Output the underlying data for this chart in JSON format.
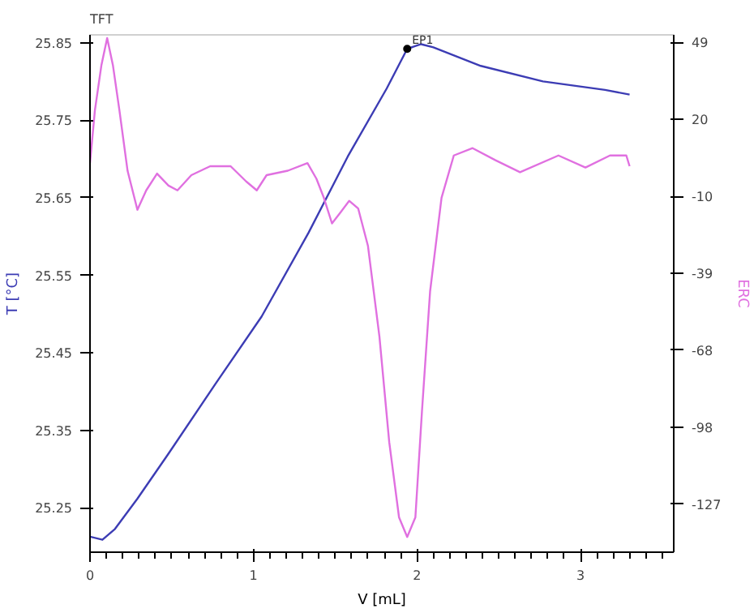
{
  "chart_data": {
    "type": "line",
    "title": "TFT",
    "xlabel": "V [mL]",
    "ylabel": "T [°C]",
    "y2label": "ERC",
    "xlim": [
      0,
      3.57
    ],
    "xticks": [
      0,
      1,
      2,
      3
    ],
    "ylim": [
      25.193,
      25.86
    ],
    "yticks": [
      25.25,
      25.35,
      25.45,
      25.55,
      25.65,
      25.75,
      25.85
    ],
    "y2lim": [
      -145.4,
      51.9
    ],
    "y2ticks": [
      {
        "value": 49,
        "label": "49"
      },
      {
        "value": 19.67,
        "label": "20"
      },
      {
        "value": -9.67,
        "label": "-10"
      },
      {
        "value": -39,
        "label": "-39"
      },
      {
        "value": -68.33,
        "label": "-68"
      },
      {
        "value": -97.67,
        "label": "-98"
      },
      {
        "value": -127,
        "label": "-127"
      }
    ],
    "grid": false,
    "marker": "none",
    "line_style": "solid",
    "annotations": [
      {
        "text": "EP1",
        "x": 1.94,
        "y": 25.842
      }
    ],
    "series": [
      {
        "color": "#3c3cb4",
        "x": [
          0,
          0.076,
          0.153,
          0.29,
          0.48,
          0.764,
          1.05,
          1.337,
          1.576,
          1.815,
          1.94,
          2.025,
          2.1,
          2.39,
          2.77,
          3.15,
          3.3
        ],
        "values": [
          25.213,
          25.209,
          25.223,
          25.262,
          25.32,
          25.409,
          25.497,
          25.605,
          25.703,
          25.791,
          25.842,
          25.848,
          25.844,
          25.82,
          25.8,
          25.789,
          25.783
        ]
      },
      {
        "color": "#e070e0",
        "axis": "y2",
        "x": [
          0,
          0.03,
          0.07,
          0.105,
          0.14,
          0.18,
          0.23,
          0.29,
          0.344,
          0.41,
          0.48,
          0.535,
          0.62,
          0.735,
          0.86,
          0.955,
          1.02,
          1.08,
          1.21,
          1.33,
          1.385,
          1.43,
          1.48,
          1.53,
          1.585,
          1.64,
          1.7,
          1.77,
          1.83,
          1.89,
          1.94,
          1.99,
          2.03,
          2.08,
          2.15,
          2.225,
          2.34,
          2.48,
          2.63,
          2.865,
          3.03,
          3.18,
          3.28,
          3.3
        ],
        "values": [
          3.0,
          23.1,
          40.4,
          50.7,
          40.4,
          23.1,
          0,
          -14.8,
          -7.4,
          -1.0,
          -5.6,
          -7.4,
          -1.6,
          1.8,
          1.8,
          -4,
          -7.4,
          -1.6,
          0.1,
          3.0,
          -3,
          -10.2,
          -20.0,
          -16.0,
          -11.4,
          -14.3,
          -28.6,
          -63.1,
          -103.4,
          -132.1,
          -139.6,
          -132.1,
          -91.9,
          -45.9,
          -10.2,
          5.9,
          8.7,
          4.1,
          -0.5,
          5.9,
          1.3,
          5.9,
          5.9,
          1.8
        ]
      }
    ]
  }
}
